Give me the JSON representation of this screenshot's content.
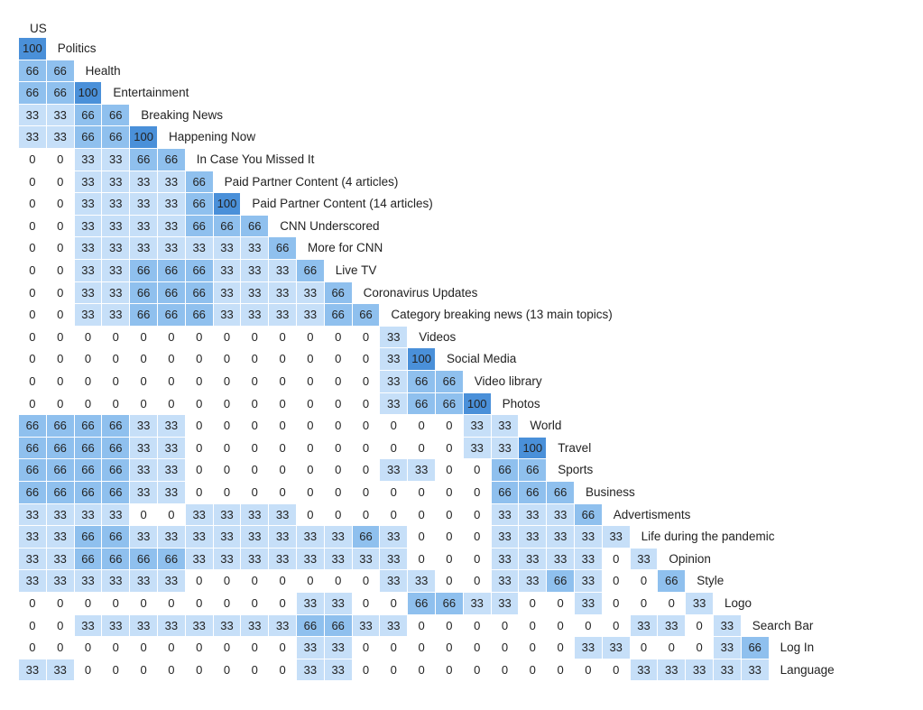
{
  "chart_data": {
    "type": "heatmap",
    "title": "US",
    "rows": [
      {
        "label": "Politics",
        "values": [
          100
        ]
      },
      {
        "label": "Health",
        "values": [
          66,
          66
        ]
      },
      {
        "label": "Entertainment",
        "values": [
          66,
          66,
          100
        ]
      },
      {
        "label": "Breaking News",
        "values": [
          33,
          33,
          66,
          66
        ]
      },
      {
        "label": "Happening Now",
        "values": [
          33,
          33,
          66,
          66,
          100
        ]
      },
      {
        "label": "In Case You Missed It",
        "values": [
          0,
          0,
          33,
          33,
          66,
          66
        ]
      },
      {
        "label": "Paid Partner Content (4 articles)",
        "values": [
          0,
          0,
          33,
          33,
          33,
          33,
          66
        ]
      },
      {
        "label": "Paid Partner Content (14 articles)",
        "values": [
          0,
          0,
          33,
          33,
          33,
          33,
          66,
          100
        ]
      },
      {
        "label": "CNN Underscored",
        "values": [
          0,
          0,
          33,
          33,
          33,
          33,
          66,
          66,
          66
        ]
      },
      {
        "label": "More for CNN",
        "values": [
          0,
          0,
          33,
          33,
          33,
          33,
          33,
          33,
          33,
          66
        ]
      },
      {
        "label": "Live TV",
        "values": [
          0,
          0,
          33,
          33,
          66,
          66,
          66,
          33,
          33,
          33,
          66
        ]
      },
      {
        "label": "Coronavirus Updates",
        "values": [
          0,
          0,
          33,
          33,
          66,
          66,
          66,
          33,
          33,
          33,
          33,
          66
        ]
      },
      {
        "label": "Category breaking news (13 main topics)",
        "values": [
          0,
          0,
          33,
          33,
          66,
          66,
          66,
          33,
          33,
          33,
          33,
          66,
          66
        ]
      },
      {
        "label": "Videos",
        "values": [
          0,
          0,
          0,
          0,
          0,
          0,
          0,
          0,
          0,
          0,
          0,
          0,
          0,
          33
        ]
      },
      {
        "label": "Social Media",
        "values": [
          0,
          0,
          0,
          0,
          0,
          0,
          0,
          0,
          0,
          0,
          0,
          0,
          0,
          33,
          100
        ]
      },
      {
        "label": "Video library",
        "values": [
          0,
          0,
          0,
          0,
          0,
          0,
          0,
          0,
          0,
          0,
          0,
          0,
          0,
          33,
          66,
          66
        ]
      },
      {
        "label": "Photos",
        "values": [
          0,
          0,
          0,
          0,
          0,
          0,
          0,
          0,
          0,
          0,
          0,
          0,
          0,
          33,
          66,
          66,
          100
        ]
      },
      {
        "label": "World",
        "values": [
          66,
          66,
          66,
          66,
          33,
          33,
          0,
          0,
          0,
          0,
          0,
          0,
          0,
          0,
          0,
          0,
          33,
          33
        ]
      },
      {
        "label": "Travel",
        "values": [
          66,
          66,
          66,
          66,
          33,
          33,
          0,
          0,
          0,
          0,
          0,
          0,
          0,
          0,
          0,
          0,
          33,
          33,
          100
        ]
      },
      {
        "label": "Sports",
        "values": [
          66,
          66,
          66,
          66,
          33,
          33,
          0,
          0,
          0,
          0,
          0,
          0,
          0,
          33,
          33,
          0,
          0,
          66,
          66
        ]
      },
      {
        "label": "Business",
        "values": [
          66,
          66,
          66,
          66,
          33,
          33,
          0,
          0,
          0,
          0,
          0,
          0,
          0,
          0,
          0,
          0,
          0,
          66,
          66,
          66
        ]
      },
      {
        "label": "Advertisments",
        "values": [
          33,
          33,
          33,
          33,
          0,
          0,
          33,
          33,
          33,
          33,
          0,
          0,
          0,
          0,
          0,
          0,
          0,
          33,
          33,
          33,
          66
        ]
      },
      {
        "label": "Life during the pandemic",
        "values": [
          33,
          33,
          66,
          66,
          33,
          33,
          33,
          33,
          33,
          33,
          33,
          33,
          66,
          33,
          0,
          0,
          0,
          33,
          33,
          33,
          33,
          33
        ]
      },
      {
        "label": "Opinion",
        "values": [
          33,
          33,
          66,
          66,
          66,
          66,
          33,
          33,
          33,
          33,
          33,
          33,
          33,
          33,
          0,
          0,
          0,
          33,
          33,
          33,
          33,
          0,
          33
        ]
      },
      {
        "label": "Style",
        "values": [
          33,
          33,
          33,
          33,
          33,
          33,
          0,
          0,
          0,
          0,
          0,
          0,
          0,
          33,
          33,
          0,
          0,
          33,
          33,
          66,
          33,
          0,
          0,
          66
        ]
      },
      {
        "label": "Logo",
        "values": [
          0,
          0,
          0,
          0,
          0,
          0,
          0,
          0,
          0,
          0,
          33,
          33,
          0,
          0,
          66,
          66,
          33,
          33,
          0,
          0,
          33,
          0,
          0,
          0,
          33
        ]
      },
      {
        "label": "Search Bar",
        "values": [
          0,
          0,
          33,
          33,
          33,
          33,
          33,
          33,
          33,
          33,
          66,
          66,
          33,
          33,
          0,
          0,
          0,
          0,
          0,
          0,
          0,
          0,
          33,
          33,
          0,
          33
        ]
      },
      {
        "label": "Log In",
        "values": [
          0,
          0,
          0,
          0,
          0,
          0,
          0,
          0,
          0,
          0,
          33,
          33,
          0,
          0,
          0,
          0,
          0,
          0,
          0,
          0,
          33,
          33,
          0,
          0,
          0,
          33,
          66
        ]
      },
      {
        "label": "Language",
        "values": [
          33,
          33,
          0,
          0,
          0,
          0,
          0,
          0,
          0,
          0,
          33,
          33,
          0,
          0,
          0,
          0,
          0,
          0,
          0,
          0,
          0,
          0,
          33,
          33,
          33,
          33,
          33
        ]
      }
    ],
    "color_scale": {
      "0": "#ffffff",
      "33": "#c6dff8",
      "66": "#8fc0ee",
      "100": "#4a90d9"
    }
  }
}
